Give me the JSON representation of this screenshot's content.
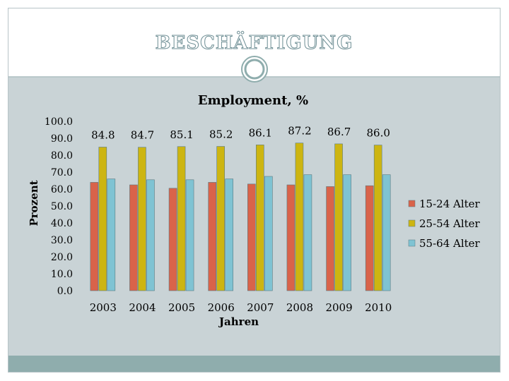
{
  "slide": {
    "title": "Beschäftigung"
  },
  "colors": {
    "series_15_24": "#d9634a",
    "series_25_54": "#cdb511",
    "series_55_64": "#7fc3d3",
    "background": "#c9d3d6",
    "footer": "#8fadad"
  },
  "icons": [
    "circle-ornament-icon"
  ],
  "chart_data": {
    "type": "bar",
    "title": "Employment, %",
    "xlabel": "Jahren",
    "ylabel": "Prozent",
    "ylim": [
      0,
      100
    ],
    "yticks": [
      "100.0",
      "90.0",
      "80.0",
      "70.0",
      "60.0",
      "50.0",
      "40.0",
      "30.0",
      "20.0",
      "10.0",
      "0.0"
    ],
    "categories": [
      "2003",
      "2004",
      "2005",
      "2006",
      "2007",
      "2008",
      "2009",
      "2010"
    ],
    "legend_position": "right",
    "grid": false,
    "series": [
      {
        "name": "15-24 Alter",
        "values": [
          64.0,
          62.5,
          60.5,
          64.0,
          63.0,
          62.5,
          61.5,
          62.0
        ]
      },
      {
        "name": "25-54 Alter",
        "values": [
          84.8,
          84.7,
          85.1,
          85.2,
          86.1,
          87.2,
          86.7,
          86.0
        ],
        "data_labels": [
          "84.8",
          "84.7",
          "85.1",
          "85.2",
          "86.1",
          "87.2",
          "86.7",
          "86.0"
        ]
      },
      {
        "name": "55-64 Alter",
        "values": [
          66.0,
          65.5,
          65.5,
          66.0,
          67.5,
          68.5,
          68.5,
          68.5
        ]
      }
    ]
  }
}
